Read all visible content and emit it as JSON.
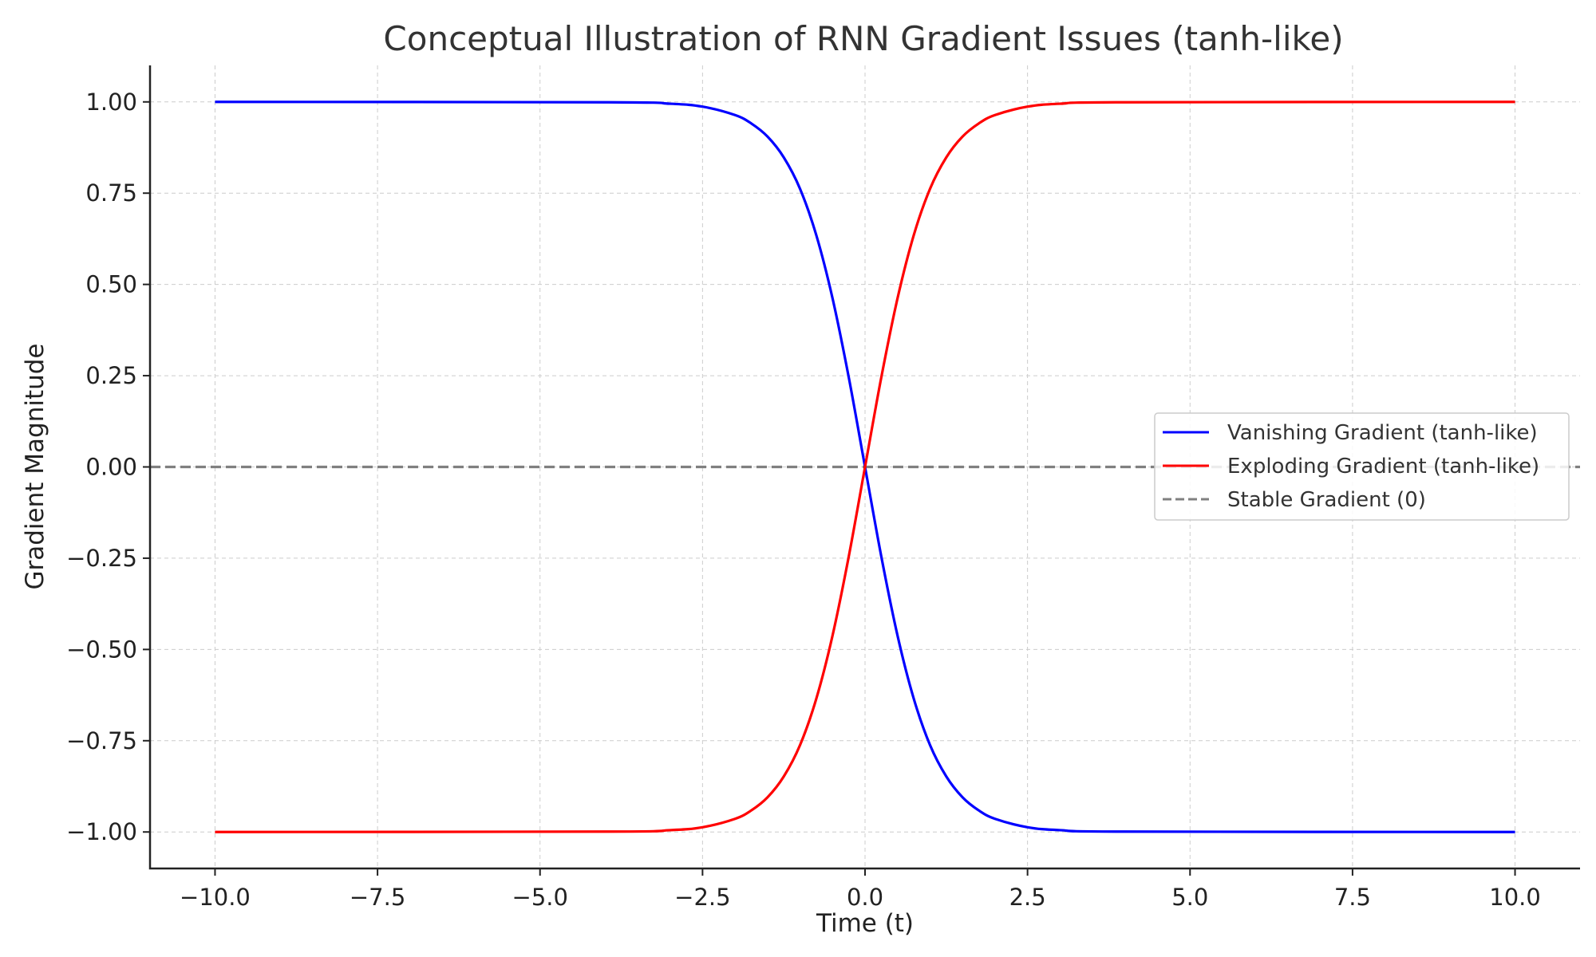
{
  "chart_data": {
    "type": "line",
    "title": "Conceptual Illustration of RNN Gradient Issues (tanh-like)",
    "xlabel": "Time (t)",
    "ylabel": "Gradient Magnitude",
    "xlim": [
      -11,
      11
    ],
    "ylim": [
      -1.1,
      1.1
    ],
    "xticks": [
      -10,
      -7.5,
      -5,
      -2.5,
      0,
      2.5,
      5,
      7.5,
      10
    ],
    "xtick_labels": [
      "−10.0",
      "−7.5",
      "−5.0",
      "−2.5",
      "0.0",
      "2.5",
      "5.0",
      "7.5",
      "10.0"
    ],
    "yticks": [
      1,
      0.75,
      0.5,
      0.25,
      0,
      -0.25,
      -0.5,
      -0.75,
      -1
    ],
    "ytick_labels": [
      "1.00",
      "0.75",
      "0.50",
      "0.25",
      "0.00",
      "−0.25",
      "−0.50",
      "−0.75",
      "−1.00"
    ],
    "grid": true,
    "legend_position": "center-right",
    "x": [
      -10,
      -4,
      -3,
      -2.5,
      -2,
      -1.75,
      -1.5,
      -1.25,
      -1,
      -0.75,
      -0.5,
      -0.25,
      0,
      0.25,
      0.5,
      0.75,
      1,
      1.25,
      1.5,
      1.75,
      2,
      2.5,
      3,
      4,
      10
    ],
    "series": [
      {
        "name": "Vanishing Gradient (tanh-like)",
        "color": "#0000ff",
        "style": "solid",
        "values": [
          1,
          0.999,
          0.995,
          0.987,
          0.964,
          0.941,
          0.905,
          0.848,
          0.762,
          0.635,
          0.462,
          0.245,
          0,
          -0.245,
          -0.462,
          -0.635,
          -0.762,
          -0.848,
          -0.905,
          -0.941,
          -0.964,
          -0.987,
          -0.995,
          -0.999,
          -1
        ]
      },
      {
        "name": "Exploding Gradient (tanh-like)",
        "color": "#ff0000",
        "style": "solid",
        "values": [
          -1,
          -0.999,
          -0.995,
          -0.987,
          -0.964,
          -0.941,
          -0.905,
          -0.848,
          -0.762,
          -0.635,
          -0.462,
          -0.245,
          0,
          0.245,
          0.462,
          0.635,
          0.762,
          0.848,
          0.905,
          0.941,
          0.964,
          0.987,
          0.995,
          0.999,
          1
        ]
      },
      {
        "name": "Stable Gradient (0)",
        "color": "#808080",
        "style": "dashed",
        "values": [
          0,
          0,
          0,
          0,
          0,
          0,
          0,
          0,
          0,
          0,
          0,
          0,
          0,
          0,
          0,
          0,
          0,
          0,
          0,
          0,
          0,
          0,
          0,
          0,
          0
        ]
      }
    ]
  }
}
